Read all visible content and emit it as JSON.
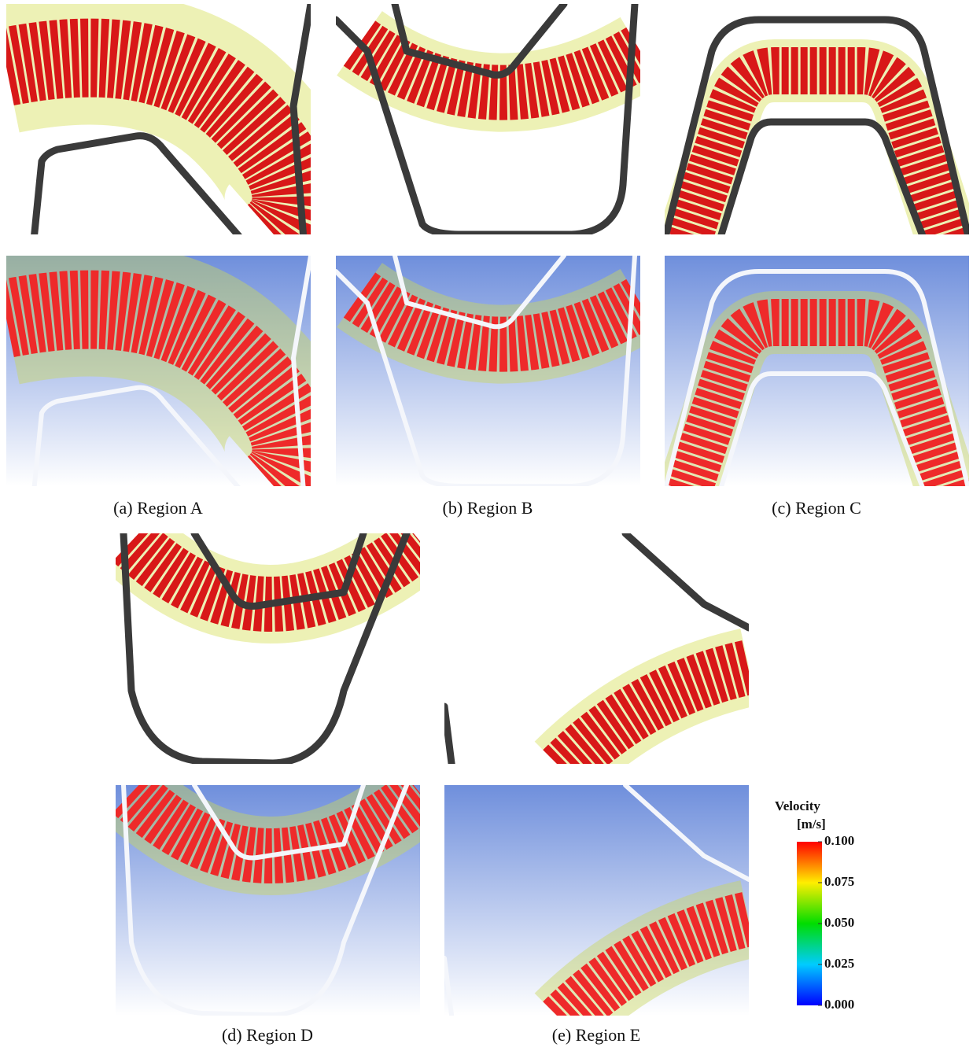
{
  "figure": {
    "captions": [
      "(a) Region A",
      "(b) Region B",
      "(c) Region C",
      "(d) Region D",
      "(e) Region E"
    ],
    "colorbar": {
      "title": "Velocity",
      "unit": "[m/s]",
      "lim": [
        0,
        0.1
      ],
      "ticks": [
        {
          "value": 0,
          "label": "0.000"
        },
        {
          "value": 0.025,
          "label": "0.025"
        },
        {
          "value": 0.05,
          "label": "0.050"
        },
        {
          "value": 0.075,
          "label": "0.075"
        },
        {
          "value": 0.1,
          "label": "0.100"
        }
      ]
    }
  }
}
